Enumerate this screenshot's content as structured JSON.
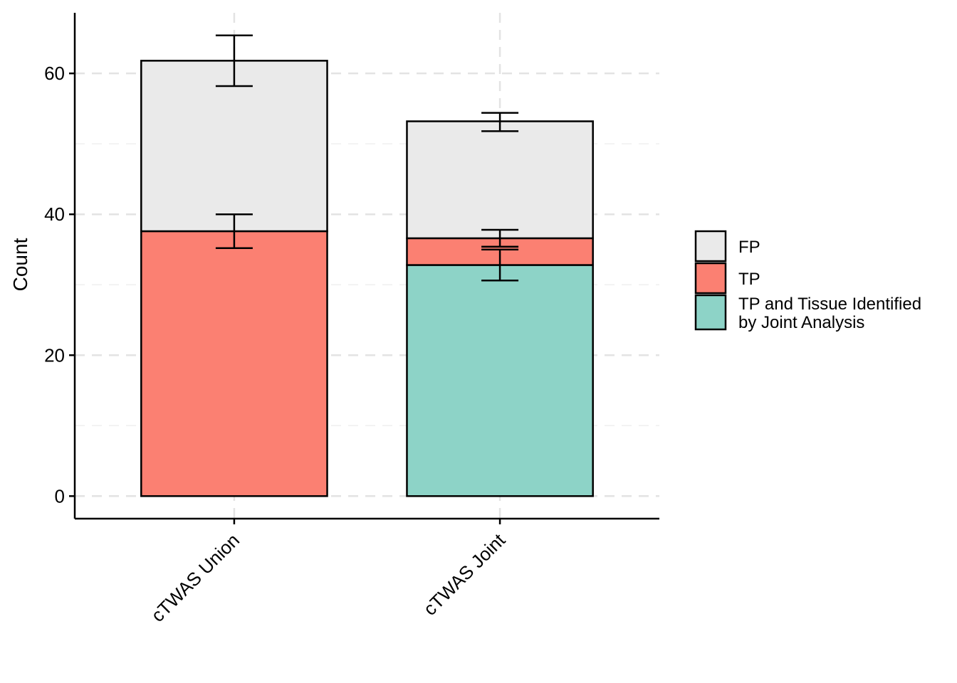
{
  "chart_data": {
    "type": "bar",
    "stacked": true,
    "categories": [
      "cTWAS Union",
      "cTWAS Joint"
    ],
    "series": [
      {
        "name": "TP and Tissue Identified by Joint Analysis",
        "color": "#8DD3C7",
        "values": [
          0,
          32.8
        ],
        "error_low": [
          null,
          30.6
        ],
        "error_high": [
          null,
          35.0
        ]
      },
      {
        "name": "TP",
        "color": "#FB8072",
        "values": [
          37.6,
          3.8
        ],
        "error_low": [
          35.2,
          35.4
        ],
        "error_high": [
          40.0,
          37.8
        ]
      },
      {
        "name": "FP",
        "color": "#EAEAEA",
        "values": [
          24.2,
          16.6
        ],
        "error_low": [
          58.2,
          51.8
        ],
        "error_high": [
          65.4,
          54.4
        ]
      }
    ],
    "ylabel": "Count",
    "xlabel": "",
    "title": "",
    "ylim": [
      -3.2,
      68.6
    ],
    "yticks": [
      0,
      20,
      40,
      60
    ],
    "grid": true,
    "legend_position": "right",
    "legend": {
      "entries": [
        {
          "key": "FP",
          "lines": [
            "FP"
          ],
          "color": "#EAEAEA"
        },
        {
          "key": "TP",
          "lines": [
            "TP"
          ],
          "color": "#FB8072"
        },
        {
          "key": "TPJ",
          "lines": [
            "TP and Tissue Identified",
            "by Joint Analysis"
          ],
          "color": "#8DD3C7"
        }
      ]
    }
  }
}
